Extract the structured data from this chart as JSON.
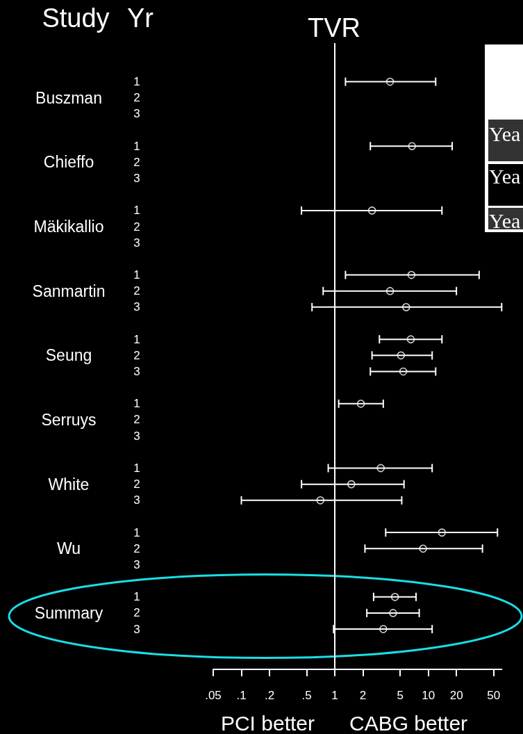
{
  "chart_data": {
    "type": "scatter",
    "orientation": "horizontal",
    "title": "TVR",
    "ylabel": "Yr",
    "y2label": "Study",
    "annotations": [
      "PCI better",
      "CABG better",
      "Yea",
      "Yea",
      "Yea"
    ],
    "categories": [
      "1",
      "2",
      "3",
      null,
      "1",
      "2",
      "3",
      null,
      "1",
      "2",
      "3",
      null,
      "1",
      "2",
      "3",
      null,
      "1",
      "2",
      "3",
      null,
      "1",
      "2",
      "3",
      null,
      "1",
      "2",
      "3",
      null,
      "1",
      "2",
      "3",
      null,
      "1",
      "2",
      "3"
    ],
    "y2_categories": [
      null,
      "Buszman",
      null,
      null,
      null,
      "Chieffo",
      null,
      null,
      null,
      "Mäkikallio",
      null,
      null,
      null,
      "Sanmartin",
      null,
      null,
      null,
      "Seung",
      null,
      null,
      null,
      "Serruys",
      null,
      null,
      null,
      "White",
      null,
      null,
      null,
      "Wu",
      null,
      null,
      null,
      "Summary",
      null
    ],
    "color": "#ffffff",
    "values": [
      3.9,
      null,
      null,
      null,
      6.7,
      null,
      null,
      null,
      2.5,
      null,
      null,
      null,
      6.6,
      3.9,
      5.8,
      null,
      6.5,
      5.1,
      5.4,
      null,
      1.9,
      null,
      null,
      null,
      3.1,
      1.5,
      0.7,
      null,
      14,
      8.8,
      null,
      null,
      4.4,
      4.2,
      3.3
    ],
    "errors": [
      [
        1.3,
        12
      ],
      null,
      null,
      null,
      [
        2.4,
        18
      ],
      null,
      null,
      null,
      [
        0.44,
        14
      ],
      null,
      null,
      null,
      [
        1.3,
        35
      ],
      [
        0.75,
        20
      ],
      [
        0.57,
        61
      ],
      null,
      [
        3,
        14
      ],
      [
        2.5,
        11
      ],
      [
        2.4,
        12
      ],
      null,
      [
        1.1,
        3.3
      ],
      null,
      null,
      null,
      [
        0.85,
        11
      ],
      [
        0.44,
        5.5
      ],
      [
        0.1,
        5.2
      ],
      null,
      [
        3.5,
        55
      ],
      [
        2.1,
        38
      ],
      null,
      null,
      [
        2.6,
        7.4
      ],
      [
        2.2,
        8
      ],
      [
        0.97,
        11
      ]
    ],
    "log": "x",
    "xlim": [
      0.05,
      61
    ],
    "xticks": [
      {
        "value": 0.05,
        "label": ".05"
      },
      {
        "value": 0.1,
        "label": ".1"
      },
      {
        "value": 0.2,
        "label": ".2"
      },
      {
        "value": 0.5,
        "label": ".5"
      },
      1,
      2,
      5,
      10,
      20,
      50
    ],
    "ref_lines": [
      {
        "axis": "x",
        "value": 1,
        "color": "#ffffff"
      }
    ],
    "marker": "circle"
  }
}
